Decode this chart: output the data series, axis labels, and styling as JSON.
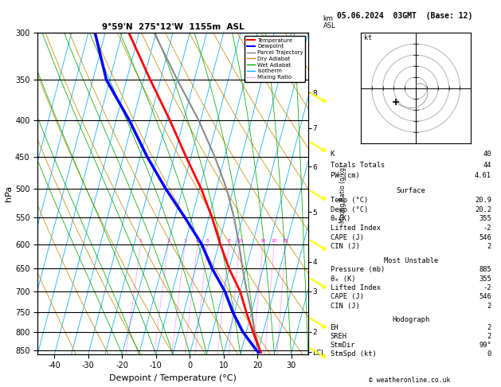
{
  "title_left": "9°59'N  275°12'W  1155m  ASL",
  "title_date": "05.06.2024  03GMT  (Base: 12)",
  "xlabel": "Dewpoint / Temperature (°C)",
  "ylabel_left": "hPa",
  "pressure_ticks": [
    300,
    350,
    400,
    450,
    500,
    550,
    600,
    650,
    700,
    750,
    800,
    850
  ],
  "temp_min": -45,
  "temp_max": 35,
  "temp_ticks": [
    -40,
    -30,
    -20,
    -10,
    0,
    10,
    20,
    30
  ],
  "background_color": "#ffffff",
  "isotherm_color": "#00aaff",
  "dry_adiabat_color": "#cc8800",
  "wet_adiabat_color": "#00aa00",
  "mixing_ratio_color": "#ff00ff",
  "temperature_color": "#ff0000",
  "dewpoint_color": "#0000ff",
  "parcel_color": "#888888",
  "km_labels": [
    "LCL",
    "2",
    "3",
    "4",
    "5",
    "6",
    "7",
    "8"
  ],
  "km_pressures": [
    855,
    800,
    700,
    635,
    540,
    465,
    410,
    365
  ],
  "mixing_ratio_values": [
    1,
    2,
    3,
    4,
    5,
    8,
    10,
    16,
    20,
    25
  ],
  "temp_profile_p": [
    855,
    850,
    800,
    750,
    700,
    650,
    600,
    550,
    500,
    450,
    400,
    350,
    300
  ],
  "temp_profile_t": [
    20.9,
    20.5,
    17.0,
    13.5,
    10.0,
    5.0,
    0.5,
    -4.0,
    -9.5,
    -16.5,
    -24.0,
    -33.0,
    -43.0
  ],
  "dewp_profile_p": [
    855,
    850,
    800,
    750,
    700,
    650,
    600,
    550,
    500,
    450,
    400,
    350,
    300
  ],
  "dewp_profile_t": [
    20.2,
    19.5,
    14.0,
    9.5,
    5.5,
    0.0,
    -5.0,
    -12.0,
    -20.0,
    -28.0,
    -36.0,
    -46.0,
    -53.0
  ],
  "parcel_profile_p": [
    855,
    850,
    800,
    750,
    700,
    650,
    600,
    550,
    500,
    450,
    400,
    350,
    300
  ],
  "parcel_profile_t": [
    20.9,
    20.5,
    17.5,
    15.0,
    12.0,
    9.0,
    6.0,
    2.5,
    -2.0,
    -8.0,
    -15.5,
    -25.0,
    -35.5
  ],
  "yellow_marks_p": [
    370,
    435,
    510,
    600,
    680,
    775,
    855
  ],
  "skew": 25
}
